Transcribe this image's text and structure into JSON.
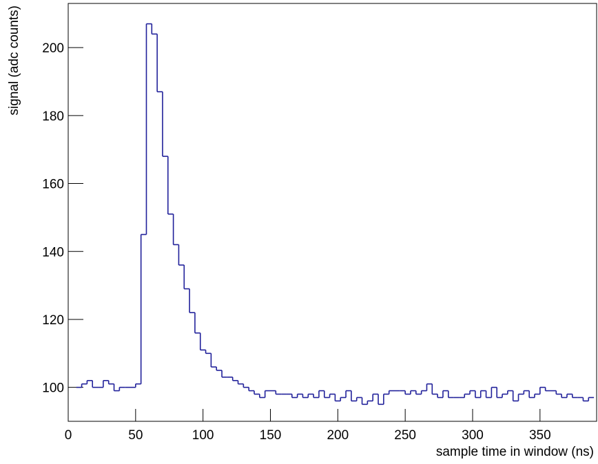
{
  "chart_data": {
    "type": "histogram",
    "x_label": "sample time in window (ns)",
    "y_label": "signal (adc counts)",
    "color": "#20209a",
    "xlim": [
      0,
      392
    ],
    "ylim": [
      90,
      213
    ],
    "xticks": [
      0,
      50,
      100,
      150,
      200,
      250,
      300,
      350
    ],
    "yticks": [
      100,
      120,
      140,
      160,
      180,
      200
    ],
    "bins": [
      6,
      10,
      14,
      18,
      22,
      26,
      30,
      34,
      38,
      42,
      46,
      50,
      54,
      58,
      62,
      66,
      70,
      74,
      78,
      82,
      86,
      90,
      94,
      98,
      102,
      106,
      110,
      114,
      118,
      122,
      126,
      130,
      134,
      138,
      142,
      146,
      150,
      154,
      158,
      162,
      166,
      170,
      174,
      178,
      182,
      186,
      190,
      194,
      198,
      202,
      206,
      210,
      214,
      218,
      222,
      226,
      230,
      234,
      238,
      242,
      246,
      250,
      254,
      258,
      262,
      266,
      270,
      274,
      278,
      282,
      286,
      290,
      294,
      298,
      302,
      306,
      310,
      314,
      318,
      322,
      326,
      330,
      334,
      338,
      342,
      346,
      350,
      354,
      358,
      362,
      366,
      370,
      374,
      378,
      382,
      386,
      390
    ],
    "counts": [
      100,
      101,
      102,
      100,
      100,
      102,
      101,
      99,
      100,
      100,
      100,
      101,
      145,
      207,
      204,
      187,
      168,
      151,
      142,
      136,
      129,
      122,
      116,
      111,
      110,
      106,
      105,
      103,
      103,
      102,
      101,
      100,
      99,
      98,
      97,
      99,
      99,
      98,
      98,
      98,
      97,
      98,
      97,
      98,
      97,
      99,
      97,
      98,
      96,
      97,
      99,
      96,
      97,
      95,
      96,
      98,
      95,
      98,
      99,
      99,
      99,
      98,
      99,
      98,
      99,
      101,
      98,
      97,
      99,
      97,
      97,
      97,
      98,
      99,
      97,
      99,
      97,
      100,
      97,
      98,
      99,
      96,
      98,
      99,
      97,
      98,
      100,
      99,
      99,
      98,
      97,
      98,
      97,
      97,
      96,
      97
    ]
  }
}
